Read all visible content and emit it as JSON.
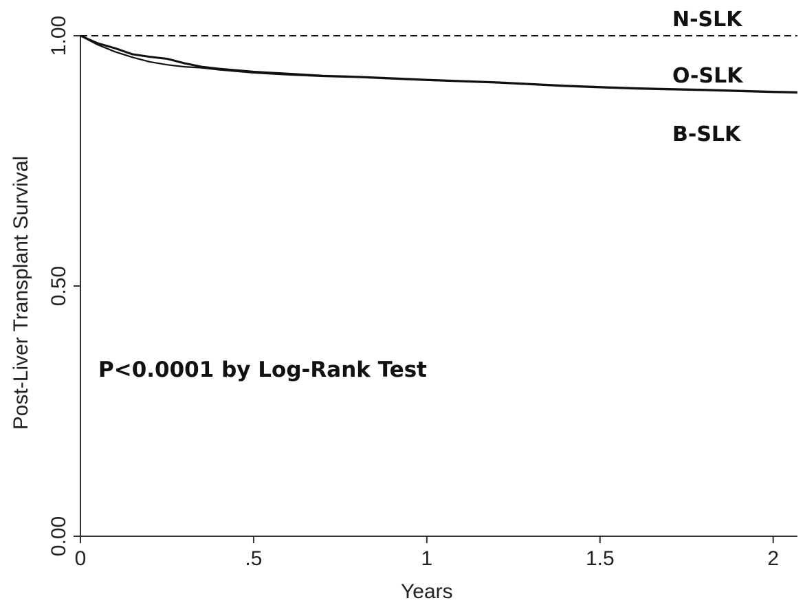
{
  "chart_data": {
    "type": "line",
    "title": "",
    "xlabel": "Years",
    "ylabel": "Post-Liver Transplant Survival",
    "xlim": [
      0,
      2.07
    ],
    "ylim": [
      0,
      1
    ],
    "x_ticks": [
      0,
      0.5,
      1,
      1.5,
      2
    ],
    "x_tick_labels": [
      "0",
      ".5",
      "1",
      "1.5",
      "2"
    ],
    "y_ticks": [
      0,
      0.5,
      1
    ],
    "y_tick_labels": [
      "0.00",
      "0.50",
      "1.00"
    ],
    "grid": false,
    "legend": "none",
    "annotation": "P<0.0001 by Log-Rank Test",
    "series": [
      {
        "name": "N-SLK",
        "style": "dashed",
        "x": [
          0,
          2.07
        ],
        "y": [
          1.0,
          1.0
        ]
      },
      {
        "name": "O-SLK",
        "style": "solid",
        "x": [
          0,
          0.05,
          0.1,
          0.15,
          0.2,
          0.25,
          0.3,
          0.35,
          0.4,
          0.5,
          0.6,
          0.7,
          0.8,
          0.9,
          1.0,
          1.2,
          1.4,
          1.6,
          1.8,
          2.0,
          2.07
        ],
        "y": [
          1.0,
          0.985,
          0.975,
          0.963,
          0.958,
          0.954,
          0.945,
          0.938,
          0.934,
          0.928,
          0.924,
          0.92,
          0.918,
          0.915,
          0.912,
          0.907,
          0.9,
          0.895,
          0.892,
          0.888,
          0.887
        ]
      },
      {
        "name": "B-SLK",
        "style": "solid",
        "x": [
          0,
          0.05,
          0.1,
          0.15,
          0.2,
          0.25,
          0.3,
          0.35,
          0.4,
          0.5,
          0.6,
          0.7,
          0.8,
          0.9,
          1.0,
          1.2,
          1.4,
          1.6,
          1.8,
          2.0,
          2.07
        ],
        "y": [
          1.0,
          0.982,
          0.968,
          0.957,
          0.948,
          0.942,
          0.938,
          0.936,
          0.932,
          0.926,
          0.922,
          0.919,
          0.917,
          0.914,
          0.911,
          0.906,
          0.899,
          0.894,
          0.891,
          0.887,
          0.886
        ]
      }
    ]
  }
}
